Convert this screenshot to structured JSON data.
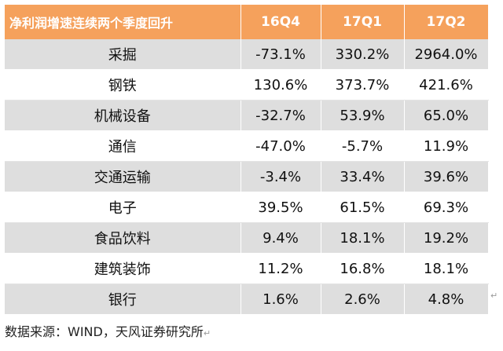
{
  "table": {
    "headers": [
      "净利润增速连续两个季度回升",
      "16Q4",
      "17Q1",
      "17Q2"
    ],
    "rows": [
      [
        "采掘",
        "-73.1%",
        "330.2%",
        "2964.0%"
      ],
      [
        "钢铁",
        "130.6%",
        "373.7%",
        "421.6%"
      ],
      [
        "机械设备",
        "-32.7%",
        "53.9%",
        "65.0%"
      ],
      [
        "通信",
        "-47.0%",
        "-5.7%",
        "11.9%"
      ],
      [
        "交通运输",
        "-3.4%",
        "33.4%",
        "39.6%"
      ],
      [
        "电子",
        "39.5%",
        "61.5%",
        "69.3%"
      ],
      [
        "食品饮料",
        "9.4%",
        "18.1%",
        "19.2%"
      ],
      [
        "建筑装饰",
        "11.2%",
        "16.8%",
        "18.1%"
      ],
      [
        "银行",
        "1.6%",
        "2.6%",
        "4.8%"
      ]
    ]
  },
  "source": "数据来源：WIND，天风证券研究所",
  "marks": {
    "paragraph": "↵",
    "cell_end": "↵"
  },
  "colors": {
    "header_bg": "#f5a15c",
    "header_text": "#ffffff",
    "band_gray": "#dedede",
    "band_white": "#ffffff"
  }
}
